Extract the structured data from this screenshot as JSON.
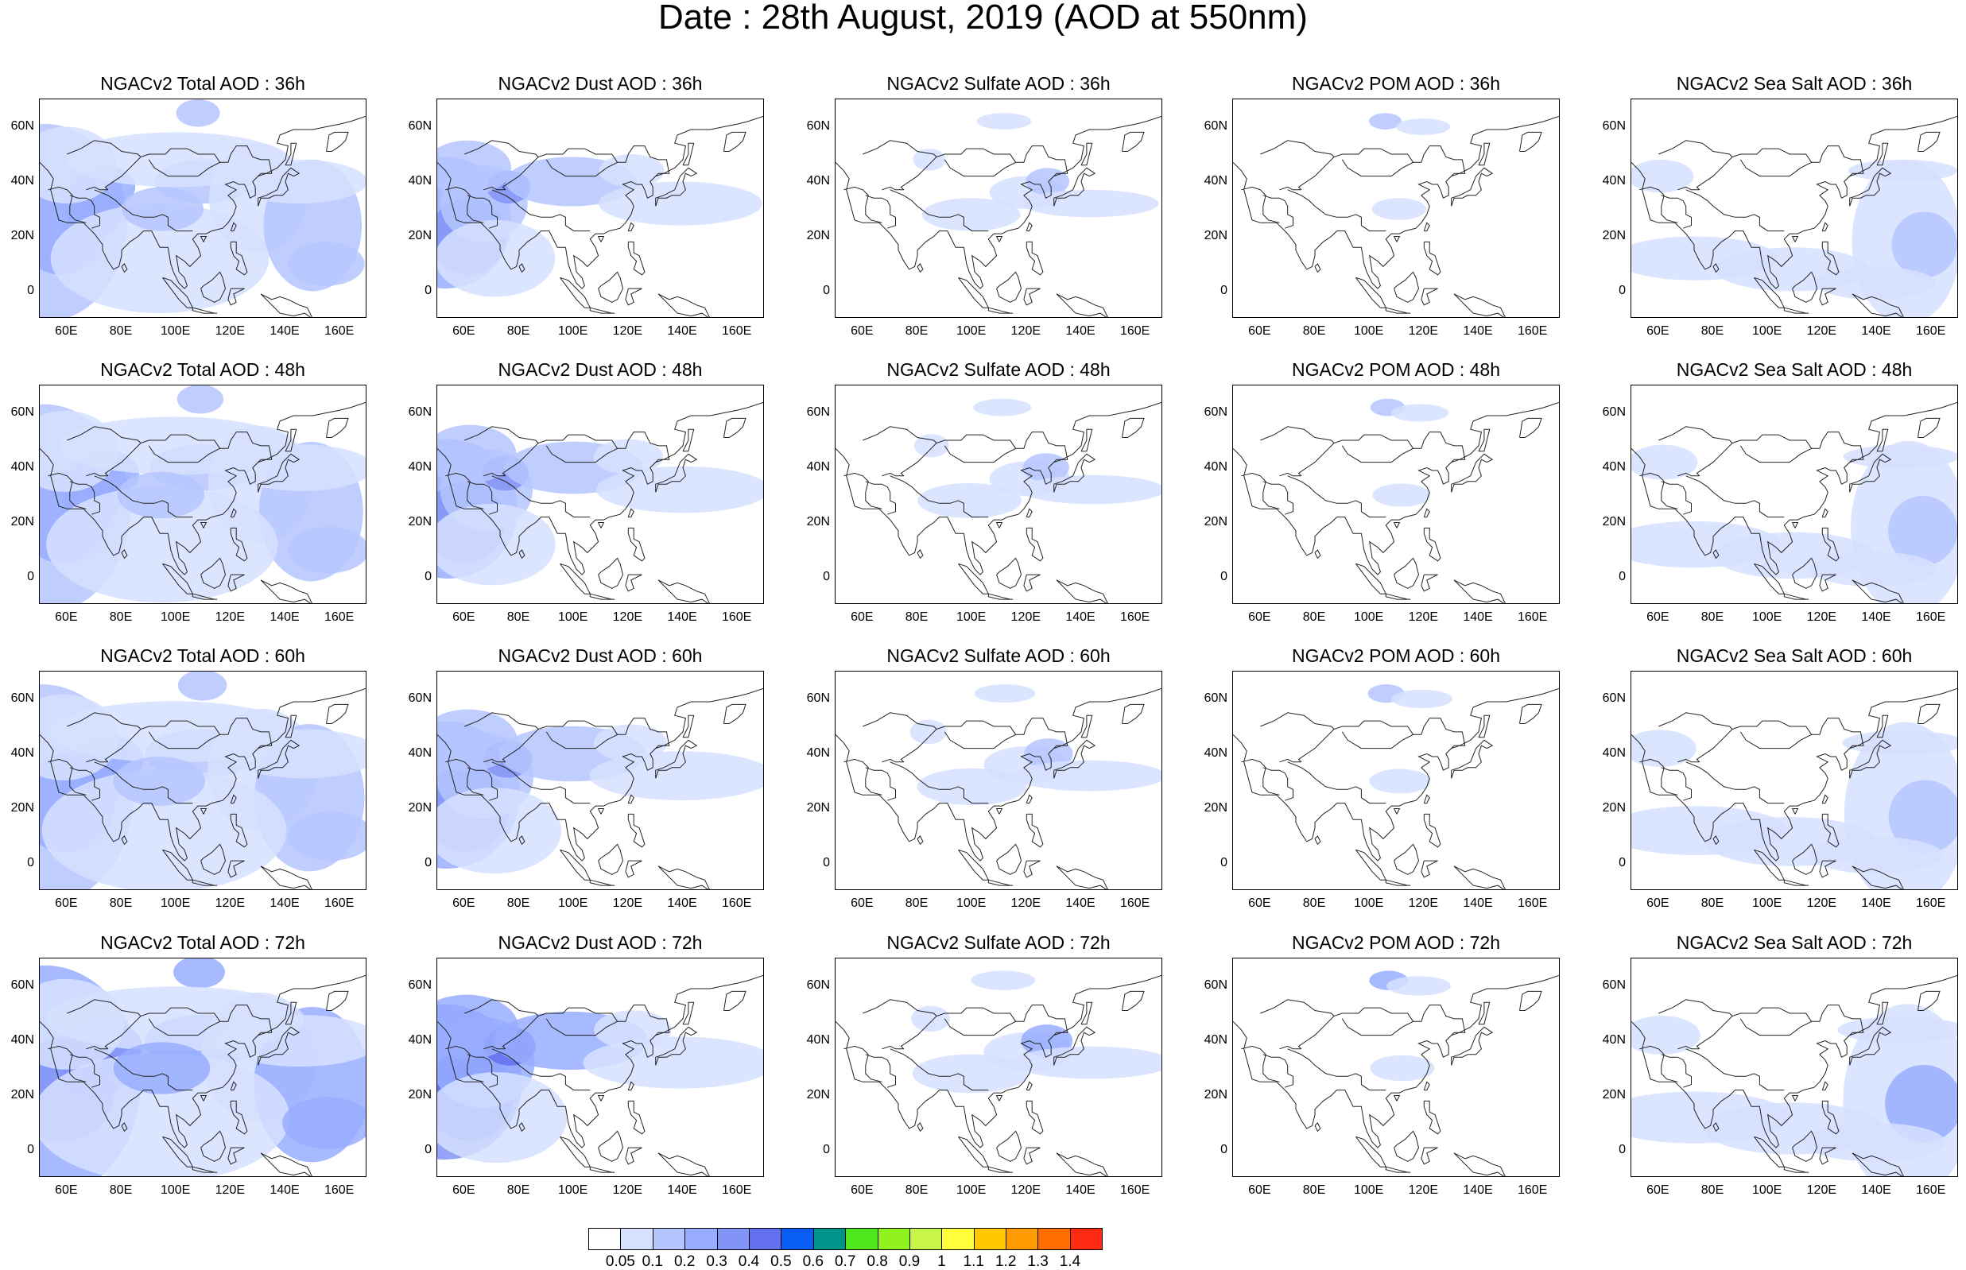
{
  "title": "Date : 28th August, 2019 (AOD at 550nm)",
  "panel_titles": [
    [
      "NGACv2 Total AOD : 36h",
      "NGACv2 Dust AOD : 36h",
      "NGACv2 Sulfate AOD : 36h",
      "NGACv2 POM AOD : 36h",
      "NGACv2 Sea Salt AOD : 36h"
    ],
    [
      "NGACv2 Total AOD : 48h",
      "NGACv2 Dust AOD : 48h",
      "NGACv2 Sulfate AOD : 48h",
      "NGACv2 POM AOD : 48h",
      "NGACv2 Sea Salt AOD : 48h"
    ],
    [
      "NGACv2 Total AOD : 60h",
      "NGACv2 Dust AOD : 60h",
      "NGACv2 Sulfate AOD : 60h",
      "NGACv2 POM AOD : 60h",
      "NGACv2 Sea Salt AOD : 60h"
    ],
    [
      "NGACv2 Total AOD : 72h",
      "NGACv2 Dust AOD : 72h",
      "NGACv2 Sulfate AOD : 72h",
      "NGACv2 POM AOD : 72h",
      "NGACv2 Sea Salt  AOD : 72h"
    ]
  ],
  "lat_ticks": [
    "60N",
    "40N",
    "20N",
    "0"
  ],
  "lon_ticks": [
    "60E",
    "80E",
    "100E",
    "120E",
    "140E",
    "160E"
  ],
  "colorbar": {
    "labels": [
      "0.05",
      "0.1",
      "0.2",
      "0.3",
      "0.4",
      "0.5",
      "0.6",
      "0.7",
      "0.8",
      "0.9",
      "1",
      "1.1",
      "1.2",
      "1.3",
      "1.4"
    ],
    "colors": [
      "#ffffff",
      "#d6e0ff",
      "#b5c6ff",
      "#98adff",
      "#8294f7",
      "#6270ee",
      "#0a5ef5",
      "#00938a",
      "#4fe81f",
      "#90f21e",
      "#c8f54a",
      "#ffff3c",
      "#ffc800",
      "#ff9a00",
      "#ff6d00",
      "#ff2a12"
    ]
  }
}
